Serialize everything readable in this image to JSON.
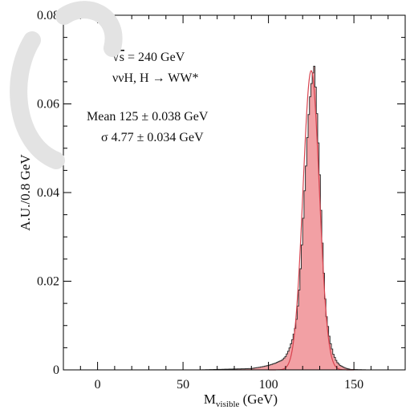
{
  "chart_data": {
    "type": "area",
    "xlabel": "M",
    "xlabel_sub": "visible",
    "xlabel_unit": " (GeV)",
    "ylabel": "A.U./0.8 GeV",
    "xlim": [
      -20,
      180
    ],
    "ylim": [
      0,
      0.08
    ],
    "x_ticks": [
      0,
      50,
      100,
      150
    ],
    "x_tick_labels": [
      "0",
      "50",
      "100",
      "150"
    ],
    "y_ticks": [
      0,
      0.02,
      0.04,
      0.06,
      0.08
    ],
    "y_tick_labels": [
      "0",
      "0.02",
      "0.04",
      "0.06",
      "0.08"
    ],
    "annotations": {
      "line1_sqrt": "√",
      "line1_s": "s",
      "line1_rest": " = 240 GeV",
      "line2": "ννH, H → WW*",
      "line3": "Mean 125 ± 0.038 GeV",
      "line4": "σ 4.77 ± 0.034 GeV"
    },
    "fit": {
      "mean": 125,
      "sigma": 4.77,
      "peak": 0.0675
    },
    "series": [
      {
        "kind": "histogram",
        "bin_width": 0.8,
        "x": [
          90,
          95,
          100,
          104,
          108,
          110,
          112,
          114,
          116,
          117,
          118,
          119,
          120,
          121,
          122,
          123,
          124,
          125,
          126,
          126.6,
          127,
          128,
          129,
          130,
          131,
          132,
          133,
          134,
          136,
          138,
          140,
          142,
          145,
          148
        ],
        "values": [
          0.0003,
          0.0006,
          0.001,
          0.0015,
          0.0022,
          0.003,
          0.0045,
          0.0068,
          0.01,
          0.0135,
          0.018,
          0.024,
          0.031,
          0.039,
          0.046,
          0.054,
          0.06,
          0.064,
          0.067,
          0.069,
          0.068,
          0.061,
          0.053,
          0.044,
          0.034,
          0.025,
          0.017,
          0.012,
          0.0065,
          0.0035,
          0.0018,
          0.001,
          0.0004,
          0.0001
        ]
      }
    ],
    "colors": {
      "fill": "#f2a0a4",
      "fill_stroke": "#c96b72",
      "histogram": "#333333",
      "fit": "#d9434f",
      "axis": "#000000"
    }
  }
}
